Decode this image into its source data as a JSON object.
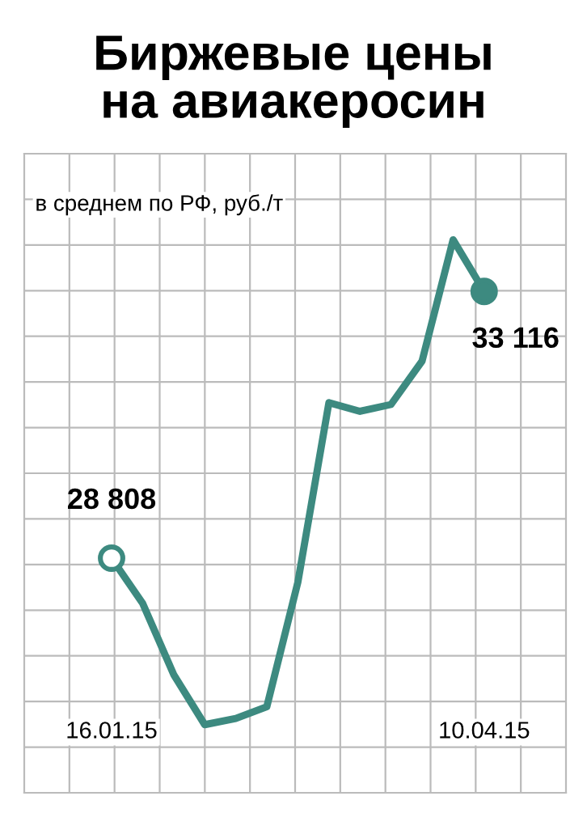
{
  "chart_data": {
    "type": "line",
    "title": "Биржевые цены\nна авиакеросин",
    "subtitle": "в среднем по РФ, руб./т",
    "ylim": [
      25020,
      35340
    ],
    "categories": [
      "16.01.15",
      null,
      null,
      null,
      null,
      null,
      null,
      null,
      null,
      null,
      null,
      null,
      "10.04.15"
    ],
    "series": [
      {
        "color": "#3d8a80",
        "values": [
          28808,
          28080,
          26930,
          26120,
          26220,
          26410,
          28420,
          31320,
          31180,
          31290,
          31990,
          33950,
          33116
        ],
        "value_labels": [
          "28 808",
          null,
          null,
          null,
          null,
          null,
          null,
          null,
          null,
          null,
          null,
          null,
          "33 116"
        ]
      }
    ],
    "grid": true
  }
}
